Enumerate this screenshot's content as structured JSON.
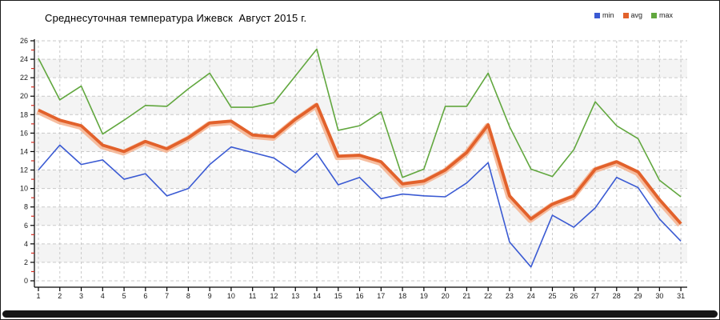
{
  "title": "Среднесуточная температура Ижевск  Август 2015 г.",
  "chart_data": {
    "type": "line",
    "title": "Среднесуточная температура Ижевск  Август 2015 г.",
    "xlabel": "",
    "ylabel": "",
    "x": [
      1,
      2,
      3,
      4,
      5,
      6,
      7,
      8,
      9,
      10,
      11,
      12,
      13,
      14,
      15,
      16,
      17,
      18,
      19,
      20,
      21,
      22,
      23,
      24,
      25,
      26,
      27,
      28,
      29,
      30,
      31
    ],
    "x_tick_labels": [
      "1",
      "2",
      "3",
      "4",
      "5",
      "6",
      "7",
      "8",
      "9",
      "10",
      "11",
      "12",
      "13",
      "14",
      "15",
      "16",
      "17",
      "18",
      "19",
      "20",
      "21",
      "22",
      "23",
      "24",
      "25",
      "26",
      "27",
      "28",
      "29",
      "30",
      "31"
    ],
    "ylim": [
      0,
      26
    ],
    "y_ticks": [
      0,
      2,
      4,
      6,
      8,
      10,
      12,
      14,
      16,
      18,
      20,
      22,
      24,
      26
    ],
    "y_minor_ticks": [
      1,
      3,
      5,
      7,
      9,
      11,
      13,
      15,
      17,
      19,
      21,
      23,
      25
    ],
    "grid": true,
    "band_color": "#f4f4f4",
    "gridline_color": "#c9c9c9",
    "minor_tick_color": "#d42a1e",
    "axis_color": "#000000",
    "legend_position": "top-right",
    "series": [
      {
        "name": "min",
        "color": "#3a5ad3",
        "width": 1.6,
        "values": [
          12.0,
          14.7,
          12.6,
          13.1,
          11.0,
          11.6,
          9.2,
          10.0,
          12.6,
          14.5,
          13.9,
          13.3,
          11.7,
          13.8,
          10.4,
          11.2,
          8.9,
          9.4,
          9.2,
          9.1,
          10.6,
          12.8,
          4.2,
          1.5,
          7.1,
          5.8,
          7.9,
          11.2,
          10.1,
          6.7,
          4.3
        ]
      },
      {
        "name": "avg",
        "color": "#e2612b",
        "halo_color": "#f5b28e",
        "width": 3.8,
        "values": [
          18.5,
          17.4,
          16.8,
          14.7,
          14.0,
          15.1,
          14.3,
          15.5,
          17.1,
          17.3,
          15.8,
          15.6,
          17.5,
          19.1,
          13.5,
          13.6,
          12.9,
          10.5,
          10.8,
          12.0,
          13.9,
          16.9,
          9.2,
          6.7,
          8.3,
          9.2,
          12.1,
          12.9,
          11.8,
          8.8,
          6.2
        ]
      },
      {
        "name": "max",
        "color": "#61a73e",
        "width": 1.6,
        "values": [
          24.1,
          19.6,
          21.1,
          15.9,
          17.4,
          19.0,
          18.9,
          20.8,
          22.5,
          18.8,
          18.8,
          19.3,
          22.2,
          25.1,
          16.3,
          16.8,
          18.3,
          11.2,
          12.1,
          18.9,
          18.9,
          22.5,
          16.7,
          12.1,
          11.3,
          14.2,
          19.4,
          16.8,
          15.4,
          10.9,
          9.1
        ]
      }
    ]
  }
}
